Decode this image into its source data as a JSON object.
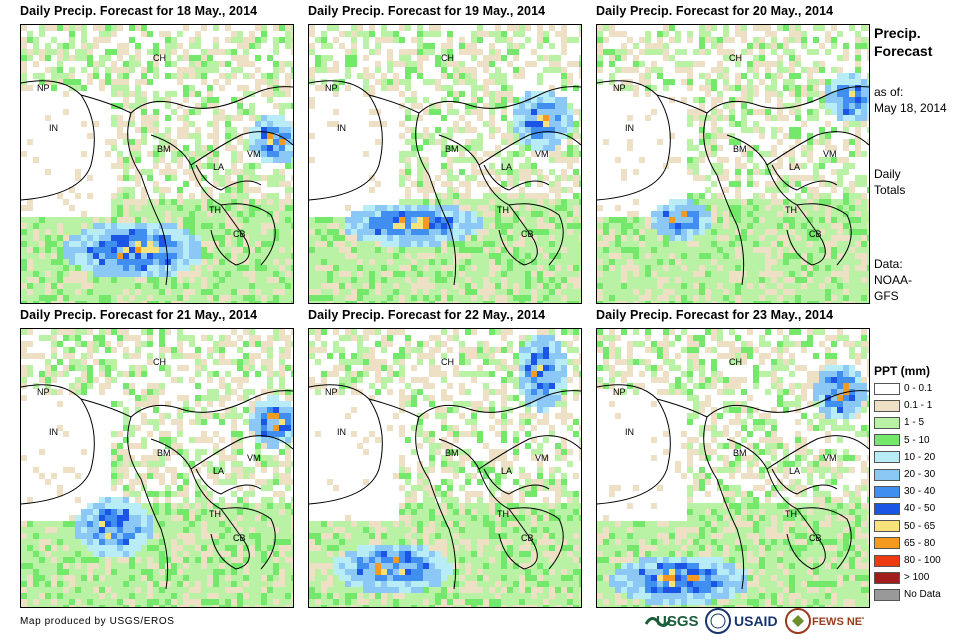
{
  "panels": [
    {
      "title": "Daily Precip. Forecast for 18 May., 2014"
    },
    {
      "title": "Daily Precip. Forecast for 19 May., 2014"
    },
    {
      "title": "Daily Precip. Forecast for 20 May., 2014"
    },
    {
      "title": "Daily Precip. Forecast for 21 May., 2014"
    },
    {
      "title": "Daily Precip. Forecast for 22 May., 2014"
    },
    {
      "title": "Daily Precip. Forecast for 23 May., 2014"
    }
  ],
  "country_labels": [
    "CH",
    "NP",
    "IN",
    "BM",
    "LA",
    "VM",
    "TH",
    "CB"
  ],
  "sidebar": {
    "title_line1": "Precip.",
    "title_line2": "Forecast",
    "asof_line1": "as of:",
    "asof_line2": "May 18, 2014",
    "totals_line1": "Daily",
    "totals_line2": "Totals",
    "data_line1": "Data:",
    "data_line2": "NOAA-",
    "data_line3": "GFS"
  },
  "legend": {
    "title": "PPT (mm)",
    "items": [
      {
        "label": "0 - 0.1",
        "color": "#ffffff"
      },
      {
        "label": "0.1 - 1",
        "color": "#ede0c4"
      },
      {
        "label": "1 - 5",
        "color": "#b9f2a5"
      },
      {
        "label": "5 - 10",
        "color": "#73e86a"
      },
      {
        "label": "10 - 20",
        "color": "#b8ecf7"
      },
      {
        "label": "20 - 30",
        "color": "#8cc8f5"
      },
      {
        "label": "30 - 40",
        "color": "#3f8ef0"
      },
      {
        "label": "40 - 50",
        "color": "#1a55e6"
      },
      {
        "label": "50 - 65",
        "color": "#f8e27a"
      },
      {
        "label": "65 - 80",
        "color": "#f59a20"
      },
      {
        "label": "80 - 100",
        "color": "#ee3a10"
      },
      {
        "label": "> 100",
        "color": "#a31c1c"
      },
      {
        "label": "No Data",
        "color": "#999999"
      }
    ]
  },
  "credit": "Map produced by USGS/EROS",
  "logos": {
    "usgs": "USGS",
    "usaid": "USAID",
    "fews": "FEWS NET"
  }
}
